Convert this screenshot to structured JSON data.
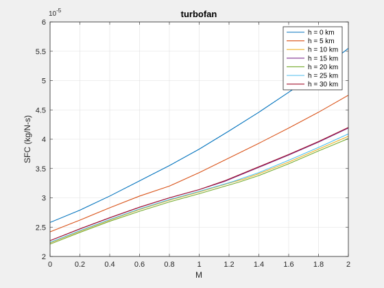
{
  "chart_data": {
    "type": "line",
    "title": "turbofan",
    "xlabel": "M",
    "ylabel": "SFC (kg/N-s)",
    "xlim": [
      0,
      2
    ],
    "ylim": [
      2,
      6
    ],
    "y_exponent": "10",
    "y_exponent_power": "-5",
    "x_ticks": [
      "0",
      "0.2",
      "0.4",
      "0.6",
      "0.8",
      "1",
      "1.2",
      "1.4",
      "1.6",
      "1.8",
      "2"
    ],
    "y_ticks": [
      "2",
      "2.5",
      "3",
      "3.5",
      "4",
      "4.5",
      "5",
      "5.5",
      "6"
    ],
    "grid": true,
    "legend_position": "top-right",
    "series": [
      {
        "name": "h =  0 km",
        "color": "#0072BD",
        "x": [
          0,
          0.2,
          0.4,
          0.6,
          0.8,
          1.0,
          1.2,
          1.4,
          1.6,
          1.8,
          2.0
        ],
        "y": [
          2.58,
          2.79,
          3.03,
          3.29,
          3.55,
          3.83,
          4.14,
          4.46,
          4.8,
          5.15,
          5.55
        ]
      },
      {
        "name": "h =  5 km",
        "color": "#D95319",
        "x": [
          0,
          0.2,
          0.4,
          0.6,
          0.8,
          1.0,
          1.2,
          1.4,
          1.6,
          1.8,
          2.0
        ],
        "y": [
          2.42,
          2.62,
          2.83,
          3.03,
          3.2,
          3.43,
          3.68,
          3.93,
          4.19,
          4.46,
          4.75
        ]
      },
      {
        "name": "h = 10 km",
        "color": "#EDB120",
        "x": [
          0,
          0.2,
          0.4,
          0.6,
          0.8,
          1.0,
          1.2,
          1.3,
          1.4,
          1.6,
          1.8,
          2.0
        ],
        "y": [
          2.23,
          2.43,
          2.62,
          2.8,
          2.96,
          3.1,
          3.25,
          3.32,
          3.41,
          3.61,
          3.83,
          4.05
        ]
      },
      {
        "name": "h = 15 km",
        "color": "#7E2F8E",
        "x": [
          0,
          0.2,
          0.4,
          0.6,
          0.8,
          1.0,
          1.17,
          1.4,
          1.6,
          1.8,
          2.0
        ],
        "y": [
          2.27,
          2.47,
          2.66,
          2.84,
          3.0,
          3.14,
          3.28,
          3.52,
          3.73,
          3.95,
          4.19
        ]
      },
      {
        "name": "h = 20 km",
        "color": "#77AC30",
        "x": [
          0,
          0.2,
          0.4,
          0.6,
          0.8,
          1.0,
          1.27,
          1.4,
          1.6,
          1.8,
          2.0
        ],
        "y": [
          2.21,
          2.41,
          2.6,
          2.77,
          2.93,
          3.07,
          3.27,
          3.38,
          3.58,
          3.8,
          4.01
        ]
      },
      {
        "name": "h = 25 km",
        "color": "#4DBEEE",
        "x": [
          0,
          0.2,
          0.4,
          0.6,
          0.8,
          1.0,
          1.23,
          1.4,
          1.6,
          1.8,
          2.0
        ],
        "y": [
          2.24,
          2.44,
          2.63,
          2.81,
          2.97,
          3.11,
          3.28,
          3.43,
          3.64,
          3.86,
          4.09
        ]
      },
      {
        "name": "h = 30 km",
        "color": "#A2142F",
        "x": [
          0,
          0.2,
          0.4,
          0.6,
          0.8,
          1.0,
          1.17,
          1.4,
          1.6,
          1.8,
          2.0
        ],
        "y": [
          2.27,
          2.47,
          2.66,
          2.84,
          3.0,
          3.14,
          3.29,
          3.53,
          3.74,
          3.96,
          4.2
        ]
      }
    ]
  }
}
